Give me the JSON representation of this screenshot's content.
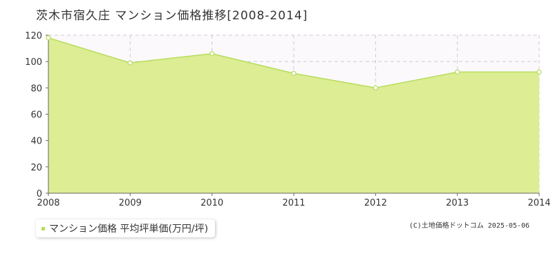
{
  "title": "茨木市宿久庄 マンション価格推移[2008-2014]",
  "copyright": "(C)土地価格ドットコム 2025-05-06",
  "colors": {
    "fill": "#dced94",
    "line": "#b7dc5c",
    "point_fill": "#ffffff",
    "grid": "#cccccc",
    "axis": "#666666",
    "plot_bg": "#fbf9fb",
    "legend_marker": "#b7dc5c"
  },
  "chart_data": {
    "type": "area",
    "title": "茨木市宿久庄 マンション価格推移[2008-2014]",
    "x": [
      "2008",
      "2009",
      "2010",
      "2011",
      "2012",
      "2013",
      "2014"
    ],
    "series": [
      {
        "name": "マンション価格 平均坪単価(万円/坪)",
        "values": [
          118,
          99,
          106,
          91,
          80,
          92,
          92
        ]
      }
    ],
    "yticks": [
      0,
      20,
      40,
      60,
      80,
      100,
      120
    ],
    "ylim": [
      0,
      120
    ],
    "grid": true,
    "legend_position": "bottom-left"
  }
}
